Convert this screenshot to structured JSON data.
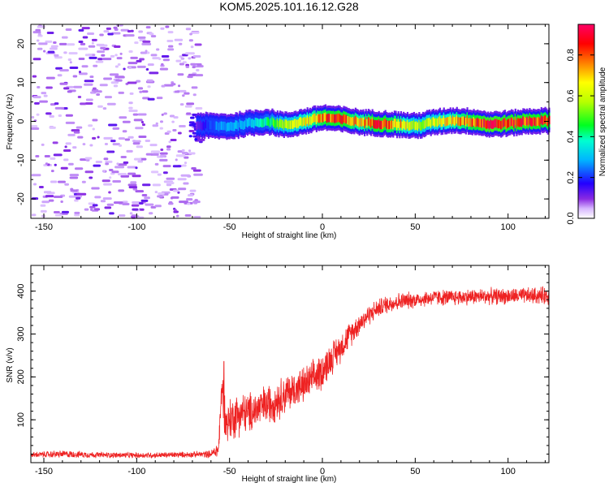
{
  "figure_title": "KOM5.2025.101.16.12.G28",
  "chart_data": [
    {
      "type": "heatmap",
      "title": "KOM5.2025.101.16.12.G28",
      "xlabel": "Height of straight line (km)",
      "ylabel": "Frequency (Hz)",
      "xlim": [
        -157,
        122
      ],
      "ylim": [
        -25,
        25
      ],
      "xticks": [
        -150,
        -100,
        -50,
        0,
        50,
        100
      ],
      "yticks": [
        -20,
        -10,
        0,
        10,
        20
      ],
      "colorbar": {
        "label": "Normalized spectral amplitude",
        "range": [
          0,
          0.95
        ],
        "ticks": [
          0.0,
          0.2,
          0.4,
          0.6,
          0.8
        ]
      },
      "noise_region_km": [
        -157,
        -68
      ],
      "signal_start_km": -68,
      "signal_trace": {
        "x": [
          -68,
          -60,
          -50,
          -40,
          -30,
          -20,
          -10,
          0,
          10,
          20,
          30,
          40,
          50,
          60,
          70,
          80,
          90,
          100,
          110,
          122
        ],
        "frequency": [
          -1.0,
          -1.2,
          -1.3,
          -0.5,
          0.0,
          -1.0,
          0.0,
          1.0,
          0.5,
          -0.2,
          -0.5,
          -0.8,
          -1.2,
          -0.2,
          0.3,
          0.0,
          -0.8,
          -0.5,
          0.0,
          0.2
        ],
        "amplitude": [
          0.1,
          0.25,
          0.3,
          0.35,
          0.45,
          0.6,
          0.7,
          0.85,
          0.9,
          0.75,
          0.9,
          0.8,
          0.6,
          0.65,
          0.75,
          0.85,
          0.95,
          0.9,
          0.9,
          0.85
        ]
      }
    },
    {
      "type": "line",
      "xlabel": "Height of straight line (km)",
      "ylabel": "SNR (v/v)",
      "xlim": [
        -157,
        122
      ],
      "ylim": [
        0,
        460
      ],
      "xticks": [
        -150,
        -100,
        -50,
        0,
        50,
        100
      ],
      "yticks": [
        100,
        200,
        300,
        400
      ],
      "series": [
        {
          "name": "SNR",
          "color": "#ee2222",
          "x": [
            -157,
            -140,
            -120,
            -100,
            -80,
            -70,
            -60,
            -56,
            -54,
            -52,
            -50,
            -45,
            -40,
            -35,
            -30,
            -25,
            -20,
            -15,
            -10,
            -5,
            0,
            5,
            10,
            15,
            20,
            25,
            30,
            35,
            40,
            50,
            60,
            70,
            80,
            90,
            100,
            110,
            122
          ],
          "y": [
            18,
            20,
            18,
            17,
            18,
            19,
            20,
            30,
            180,
            90,
            100,
            115,
            115,
            125,
            135,
            145,
            160,
            170,
            180,
            195,
            215,
            245,
            270,
            300,
            325,
            345,
            360,
            370,
            375,
            380,
            385,
            385,
            387,
            388,
            388,
            389,
            390
          ],
          "noise_amplitude": [
            8,
            10,
            8,
            8,
            8,
            8,
            10,
            25,
            60,
            60,
            60,
            60,
            55,
            55,
            55,
            55,
            55,
            50,
            50,
            50,
            50,
            45,
            40,
            35,
            30,
            28,
            25,
            25,
            25,
            22,
            22,
            22,
            22,
            22,
            22,
            22,
            25
          ],
          "peak": {
            "x": -53,
            "y": 236
          }
        }
      ]
    }
  ]
}
